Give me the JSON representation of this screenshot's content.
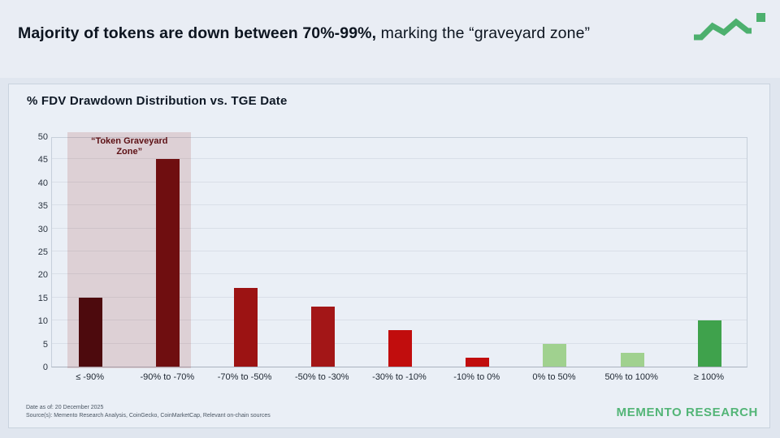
{
  "slide": {
    "title_bold": "Majority of tokens are down between 70%-99%,",
    "title_regular": " marking the “graveyard zone”"
  },
  "chart": {
    "title": "% FDV Drawdown Distribution vs. TGE Date"
  },
  "chart_data": {
    "type": "bar",
    "title": "% FDV Drawdown Distribution vs. TGE Date",
    "categories": [
      "≤ -90%",
      "-90% to -70%",
      "-70% to -50%",
      "-50% to -30%",
      "-30% to -10%",
      "-10% to 0%",
      "0% to 50%",
      "50% to 100%",
      "≥ 100%"
    ],
    "values": [
      15,
      45,
      17,
      13,
      8,
      2,
      5,
      3,
      10
    ],
    "bar_colors": [
      "#4d0a0d",
      "#6f0e10",
      "#9c1313",
      "#a31617",
      "#c10d0d",
      "#c10d0d",
      "#a0d18f",
      "#a0d18f",
      "#3fa24c"
    ],
    "xlabel": "",
    "ylabel": "",
    "ylim": [
      0,
      50
    ],
    "ytick_step": 5,
    "grid": true,
    "legend": "none",
    "annotation": {
      "label_line1": "“Token Graveyard",
      "label_line2": "Zone”",
      "covers_categories": [
        "≤ -90%",
        "-90% to -70%"
      ],
      "fill": "rgba(158,50,42,0.16)",
      "text_color": "#5c1014"
    }
  },
  "footer": {
    "date_note": "Date as of: 20 December 2025",
    "sources_note": "Source(s): Memento Research Analysis, CoinGecko, CoinMarketCap, Relevant on-chain sources",
    "brand": "MEMENTO RESEARCH"
  },
  "colors": {
    "brand_green": "#4db06e",
    "header_bg": "#e9edf4",
    "card_bg": "#eaeff6",
    "slide_bg": "#e0e6ef",
    "title_text": "#0d1520"
  }
}
